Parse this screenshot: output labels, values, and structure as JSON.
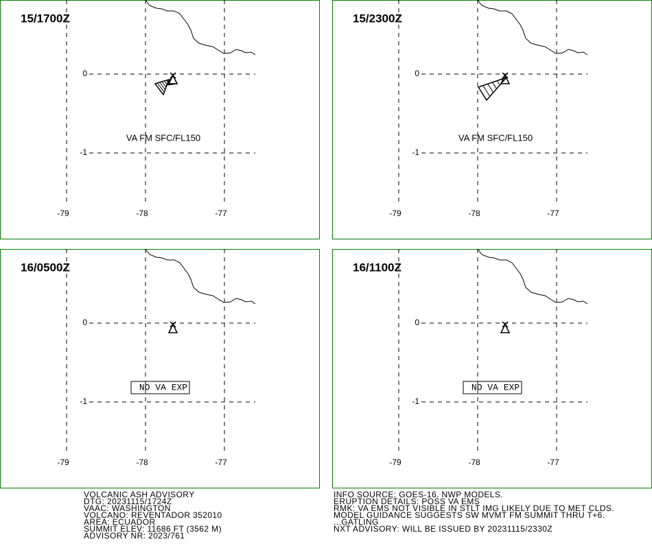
{
  "panels": [
    {
      "time": "15/1700Z",
      "label": "VA FM SFC/FL150"
    },
    {
      "time": "15/2300Z",
      "label": "VA FM SFC/FL150"
    },
    {
      "time": "16/0500Z",
      "label": "NO VA EXP"
    },
    {
      "time": "16/1100Z",
      "label": "NO VA EXP"
    }
  ],
  "lat_labels": [
    "0",
    "-1"
  ],
  "lon_labels": [
    "-79",
    "-78",
    "-77"
  ],
  "advisory_left": [
    "VOLCANIC ASH ADVISORY",
    "DTG: 20231115/1724Z",
    "VAAC: WASHINGTON",
    "VOLCANO: REVENTADOR 352010",
    "AREA: ECUADOR",
    "SUMMIT ELEV: 11686 FT (3562 M)",
    "ADVISORY NR: 2023/761"
  ],
  "advisory_right": [
    "INFO SOURCE: GOES-16. NWP MODELS.",
    "ERUPTION DETAILS: POSS VA EMS",
    "RMK: VA EMS NOT VISIBLE IN STLT IMG LIKELY DUE TO MET CLDS.",
    "MODEL GUIDANCE SUGGESTS SW MVMT FM SUMMIT THRU T+6.",
    "...GATLING",
    "NXT ADVISORY: WILL BE ISSUED BY 20231115/2330Z"
  ]
}
